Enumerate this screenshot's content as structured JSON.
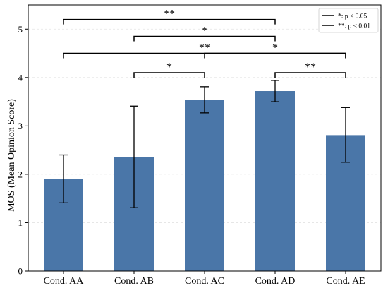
{
  "chart_data": {
    "type": "bar",
    "categories": [
      "Cond. AA",
      "Cond. AB",
      "Cond. AC",
      "Cond. AD",
      "Cond. AE"
    ],
    "values": [
      1.9,
      2.36,
      3.54,
      3.72,
      2.81
    ],
    "error_low": [
      1.41,
      1.31,
      3.27,
      3.5,
      2.25
    ],
    "error_high": [
      2.4,
      3.41,
      3.81,
      3.94,
      3.38
    ],
    "ylabel": "MOS (Mean Opinion Score)",
    "xlabel": "",
    "title": "",
    "ylim": [
      0,
      5.5
    ],
    "yticks": [
      0,
      1,
      2,
      3,
      4,
      5
    ],
    "grid": "y-dashed",
    "bar_color": "#4a76a8",
    "legend": {
      "placement": "top-right",
      "entries": [
        "*: p < 0.05",
        "**: p < 0.01"
      ]
    },
    "significance": [
      {
        "from": "Cond. AA",
        "to": "Cond. AD",
        "y": 5.2,
        "label": "**"
      },
      {
        "from": "Cond. AB",
        "to": "Cond. AD",
        "y": 4.85,
        "label": "*"
      },
      {
        "from": "Cond. AA",
        "to": "Cond. AE",
        "y": 4.5,
        "label": "**"
      },
      {
        "from": "Cond. AC",
        "to": "Cond. AE",
        "y": 4.5,
        "label": "*"
      },
      {
        "from": "Cond. AB",
        "to": "Cond. AC",
        "y": 4.1,
        "label": "*"
      },
      {
        "from": "Cond. AD",
        "to": "Cond. AE",
        "y": 4.1,
        "label": "**"
      }
    ]
  }
}
